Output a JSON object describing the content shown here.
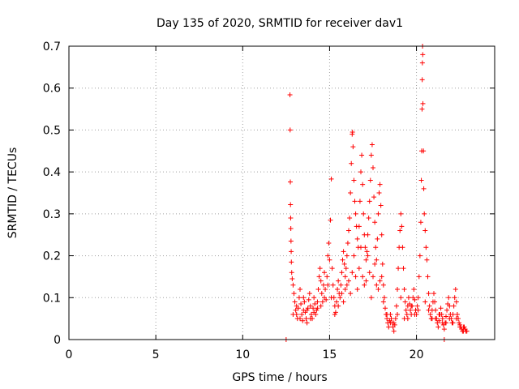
{
  "chart_data": {
    "type": "scatter",
    "title": "Day 135 of 2020, SRMTID for receiver dav1",
    "xlabel": "GPS time / hours",
    "ylabel": "SRMTID / TECUs",
    "xlim": [
      0,
      24.5
    ],
    "ylim": [
      0,
      0.7
    ],
    "grid": true,
    "marker": "plus",
    "color": "#ff0000",
    "x_ticks": [
      {
        "value": 0,
        "label": "0"
      },
      {
        "value": 5,
        "label": "5"
      },
      {
        "value": 10,
        "label": "10"
      },
      {
        "value": 15,
        "label": "15"
      },
      {
        "value": 20,
        "label": "20"
      }
    ],
    "y_ticks": [
      {
        "value": 0,
        "label": "0"
      },
      {
        "value": 0.1,
        "label": "0.1"
      },
      {
        "value": 0.2,
        "label": "0.2"
      },
      {
        "value": 0.3,
        "label": "0.3"
      },
      {
        "value": 0.4,
        "label": "0.4"
      },
      {
        "value": 0.5,
        "label": "0.5"
      },
      {
        "value": 0.6,
        "label": "0.6"
      },
      {
        "value": 0.7,
        "label": "0.7"
      }
    ],
    "series": [
      {
        "name": "dav1",
        "points": [
          [
            12.5,
            0.0
          ],
          [
            21.6,
            0.0
          ],
          [
            12.72,
            0.584
          ],
          [
            12.73,
            0.5
          ],
          [
            12.74,
            0.376
          ],
          [
            12.75,
            0.322
          ],
          [
            12.76,
            0.29
          ],
          [
            12.77,
            0.265
          ],
          [
            12.78,
            0.235
          ],
          [
            12.79,
            0.21
          ],
          [
            12.8,
            0.185
          ],
          [
            12.82,
            0.16
          ],
          [
            12.85,
            0.145
          ],
          [
            12.9,
            0.13
          ],
          [
            12.95,
            0.11
          ],
          [
            13.0,
            0.09
          ],
          [
            13.05,
            0.07
          ],
          [
            13.1,
            0.06
          ],
          [
            13.15,
            0.05
          ],
          [
            13.2,
            0.075
          ],
          [
            13.25,
            0.1
          ],
          [
            13.3,
            0.12
          ],
          [
            13.35,
            0.085
          ],
          [
            13.4,
            0.06
          ],
          [
            13.45,
            0.045
          ],
          [
            13.5,
            0.07
          ],
          [
            13.55,
            0.09
          ],
          [
            13.6,
            0.065
          ],
          [
            13.65,
            0.05
          ],
          [
            13.7,
            0.04
          ],
          [
            13.75,
            0.075
          ],
          [
            13.8,
            0.095
          ],
          [
            13.85,
            0.11
          ],
          [
            13.9,
            0.08
          ],
          [
            13.95,
            0.06
          ],
          [
            14.0,
            0.05
          ],
          [
            14.05,
            0.075
          ],
          [
            14.1,
            0.1
          ],
          [
            14.15,
            0.085
          ],
          [
            14.2,
            0.06
          ],
          [
            14.25,
            0.07
          ],
          [
            14.3,
            0.09
          ],
          [
            14.35,
            0.12
          ],
          [
            14.4,
            0.15
          ],
          [
            14.45,
            0.17
          ],
          [
            14.5,
            0.14
          ],
          [
            14.55,
            0.11
          ],
          [
            14.6,
            0.09
          ],
          [
            14.65,
            0.13
          ],
          [
            14.7,
            0.16
          ],
          [
            14.75,
            0.12
          ],
          [
            14.8,
            0.095
          ],
          [
            14.85,
            0.15
          ],
          [
            14.9,
            0.2
          ],
          [
            14.95,
            0.23
          ],
          [
            15.0,
            0.19
          ],
          [
            15.05,
            0.285
          ],
          [
            15.1,
            0.383
          ],
          [
            15.15,
            0.17
          ],
          [
            15.2,
            0.13
          ],
          [
            15.25,
            0.1
          ],
          [
            15.3,
            0.08
          ],
          [
            15.35,
            0.065
          ],
          [
            15.4,
            0.09
          ],
          [
            15.45,
            0.12
          ],
          [
            15.5,
            0.14
          ],
          [
            15.55,
            0.11
          ],
          [
            15.6,
            0.1
          ],
          [
            15.65,
            0.13
          ],
          [
            15.7,
            0.16
          ],
          [
            15.75,
            0.19
          ],
          [
            15.8,
            0.21
          ],
          [
            15.85,
            0.18
          ],
          [
            15.9,
            0.15
          ],
          [
            15.95,
            0.17
          ],
          [
            16.0,
            0.2
          ],
          [
            16.05,
            0.23
          ],
          [
            16.1,
            0.26
          ],
          [
            16.15,
            0.29
          ],
          [
            16.2,
            0.35
          ],
          [
            16.25,
            0.42
          ],
          [
            16.3,
            0.49
          ],
          [
            16.32,
            0.495
          ],
          [
            16.35,
            0.46
          ],
          [
            16.4,
            0.38
          ],
          [
            16.45,
            0.33
          ],
          [
            16.5,
            0.3
          ],
          [
            16.55,
            0.27
          ],
          [
            16.6,
            0.24
          ],
          [
            16.65,
            0.22
          ],
          [
            16.7,
            0.27
          ],
          [
            16.75,
            0.33
          ],
          [
            16.8,
            0.4
          ],
          [
            16.85,
            0.44
          ],
          [
            16.9,
            0.37
          ],
          [
            16.95,
            0.3
          ],
          [
            17.0,
            0.25
          ],
          [
            17.05,
            0.22
          ],
          [
            17.1,
            0.19
          ],
          [
            17.15,
            0.21
          ],
          [
            17.2,
            0.25
          ],
          [
            17.25,
            0.29
          ],
          [
            17.3,
            0.33
          ],
          [
            17.35,
            0.38
          ],
          [
            17.4,
            0.44
          ],
          [
            17.45,
            0.465
          ],
          [
            17.5,
            0.41
          ],
          [
            17.55,
            0.34
          ],
          [
            17.6,
            0.28
          ],
          [
            17.65,
            0.22
          ],
          [
            17.7,
            0.19
          ],
          [
            17.75,
            0.24
          ],
          [
            17.8,
            0.3
          ],
          [
            17.85,
            0.35
          ],
          [
            17.9,
            0.37
          ],
          [
            17.95,
            0.32
          ],
          [
            18.0,
            0.25
          ],
          [
            18.05,
            0.18
          ],
          [
            18.1,
            0.13
          ],
          [
            18.15,
            0.1
          ],
          [
            18.2,
            0.075
          ],
          [
            18.25,
            0.06
          ],
          [
            18.3,
            0.05
          ],
          [
            18.35,
            0.04
          ],
          [
            18.4,
            0.03
          ],
          [
            18.45,
            0.045
          ],
          [
            18.5,
            0.06
          ],
          [
            18.55,
            0.05
          ],
          [
            18.6,
            0.04
          ],
          [
            18.65,
            0.03
          ],
          [
            18.7,
            0.02
          ],
          [
            18.75,
            0.035
          ],
          [
            18.8,
            0.05
          ],
          [
            18.85,
            0.08
          ],
          [
            18.9,
            0.12
          ],
          [
            18.95,
            0.17
          ],
          [
            19.0,
            0.22
          ],
          [
            19.05,
            0.26
          ],
          [
            19.1,
            0.3
          ],
          [
            19.15,
            0.27
          ],
          [
            19.2,
            0.22
          ],
          [
            19.25,
            0.17
          ],
          [
            19.3,
            0.12
          ],
          [
            19.35,
            0.09
          ],
          [
            19.4,
            0.07
          ],
          [
            19.45,
            0.06
          ],
          [
            19.5,
            0.08
          ],
          [
            19.55,
            0.1
          ],
          [
            19.6,
            0.085
          ],
          [
            19.65,
            0.07
          ],
          [
            19.7,
            0.06
          ],
          [
            19.75,
            0.08
          ],
          [
            19.8,
            0.1
          ],
          [
            19.85,
            0.12
          ],
          [
            19.9,
            0.095
          ],
          [
            19.95,
            0.07
          ],
          [
            20.0,
            0.06
          ],
          [
            20.05,
            0.08
          ],
          [
            20.1,
            0.1
          ],
          [
            20.15,
            0.15
          ],
          [
            20.2,
            0.2
          ],
          [
            20.25,
            0.28
          ],
          [
            20.28,
            0.38
          ],
          [
            20.3,
            0.45
          ],
          [
            20.32,
            0.55
          ],
          [
            20.33,
            0.62
          ],
          [
            20.34,
            0.66
          ],
          [
            20.35,
            0.7
          ],
          [
            20.36,
            0.68
          ],
          [
            20.37,
            0.563
          ],
          [
            20.4,
            0.45
          ],
          [
            20.42,
            0.36
          ],
          [
            20.45,
            0.3
          ],
          [
            20.5,
            0.26
          ],
          [
            20.55,
            0.22
          ],
          [
            20.6,
            0.19
          ],
          [
            20.65,
            0.15
          ],
          [
            20.7,
            0.11
          ],
          [
            20.75,
            0.08
          ],
          [
            20.8,
            0.06
          ],
          [
            20.85,
            0.05
          ],
          [
            20.9,
            0.07
          ],
          [
            20.95,
            0.09
          ],
          [
            21.0,
            0.11
          ],
          [
            21.05,
            0.09
          ],
          [
            21.1,
            0.07
          ],
          [
            21.15,
            0.05
          ],
          [
            21.2,
            0.04
          ],
          [
            21.25,
            0.03
          ],
          [
            21.3,
            0.045
          ],
          [
            21.35,
            0.06
          ],
          [
            21.4,
            0.075
          ],
          [
            21.45,
            0.06
          ],
          [
            21.5,
            0.05
          ],
          [
            21.55,
            0.035
          ],
          [
            21.6,
            0.025
          ],
          [
            21.65,
            0.04
          ],
          [
            21.7,
            0.055
          ],
          [
            21.75,
            0.07
          ],
          [
            21.8,
            0.085
          ],
          [
            21.85,
            0.1
          ],
          [
            21.9,
            0.08
          ],
          [
            21.95,
            0.06
          ],
          [
            22.0,
            0.05
          ],
          [
            22.05,
            0.04
          ],
          [
            22.1,
            0.06
          ],
          [
            22.15,
            0.08
          ],
          [
            22.2,
            0.1
          ],
          [
            22.25,
            0.12
          ],
          [
            22.3,
            0.09
          ],
          [
            22.35,
            0.06
          ],
          [
            22.4,
            0.05
          ],
          [
            22.45,
            0.04
          ],
          [
            22.5,
            0.035
          ],
          [
            22.55,
            0.03
          ],
          [
            22.6,
            0.025
          ],
          [
            22.65,
            0.02
          ],
          [
            22.7,
            0.02
          ],
          [
            22.75,
            0.03
          ],
          [
            22.8,
            0.025
          ],
          [
            22.85,
            0.02
          ],
          [
            12.9,
            0.06
          ],
          [
            13.1,
            0.08
          ],
          [
            13.3,
            0.05
          ],
          [
            13.5,
            0.1
          ],
          [
            13.7,
            0.07
          ],
          [
            13.9,
            0.05
          ],
          [
            14.1,
            0.065
          ],
          [
            14.3,
            0.075
          ],
          [
            14.5,
            0.08
          ],
          [
            14.7,
            0.1
          ],
          [
            14.9,
            0.13
          ],
          [
            15.1,
            0.1
          ],
          [
            15.3,
            0.06
          ],
          [
            15.5,
            0.08
          ],
          [
            15.7,
            0.11
          ],
          [
            15.9,
            0.12
          ],
          [
            16.1,
            0.14
          ],
          [
            16.3,
            0.16
          ],
          [
            16.5,
            0.15
          ],
          [
            16.7,
            0.17
          ],
          [
            16.9,
            0.15
          ],
          [
            17.1,
            0.14
          ],
          [
            17.3,
            0.16
          ],
          [
            17.5,
            0.15
          ],
          [
            17.7,
            0.13
          ],
          [
            17.9,
            0.14
          ],
          [
            18.1,
            0.09
          ],
          [
            18.3,
            0.06
          ],
          [
            18.5,
            0.04
          ],
          [
            18.7,
            0.04
          ],
          [
            18.9,
            0.06
          ],
          [
            19.1,
            0.1
          ],
          [
            19.3,
            0.05
          ],
          [
            19.5,
            0.05
          ],
          [
            19.7,
            0.08
          ],
          [
            19.9,
            0.06
          ],
          [
            20.1,
            0.07
          ],
          [
            20.5,
            0.09
          ],
          [
            20.7,
            0.07
          ],
          [
            20.9,
            0.05
          ],
          [
            21.1,
            0.05
          ],
          [
            21.3,
            0.06
          ],
          [
            21.5,
            0.04
          ],
          [
            21.7,
            0.04
          ],
          [
            21.9,
            0.05
          ],
          [
            22.1,
            0.04
          ],
          [
            22.3,
            0.05
          ],
          [
            22.5,
            0.03
          ],
          [
            22.7,
            0.03
          ],
          [
            22.9,
            0.02
          ],
          [
            16.0,
            0.13
          ],
          [
            16.4,
            0.2
          ],
          [
            16.8,
            0.22
          ],
          [
            17.2,
            0.2
          ],
          [
            17.6,
            0.18
          ],
          [
            18.0,
            0.15
          ],
          [
            15.8,
            0.09
          ],
          [
            16.2,
            0.11
          ],
          [
            16.6,
            0.12
          ],
          [
            17.0,
            0.13
          ],
          [
            17.4,
            0.1
          ],
          [
            17.8,
            0.12
          ]
        ]
      }
    ]
  }
}
